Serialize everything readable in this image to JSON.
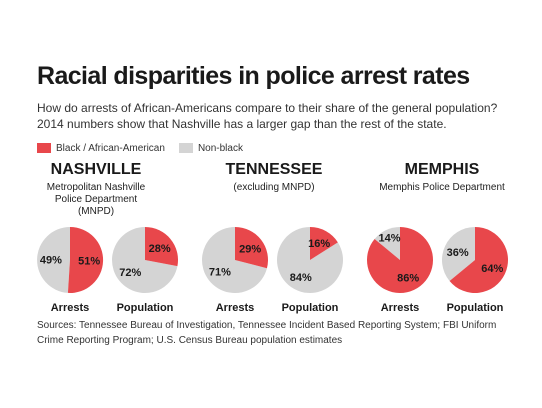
{
  "header": {
    "title": "Racial disparities in police arrest rates",
    "subtitle": "How do arrests of African-Americans compare to their share of the general population? 2014 numbers show that Nashville has a larger gap than the rest of the state."
  },
  "legend": {
    "black_label": "Black / African-American",
    "nonblack_label": "Non-black"
  },
  "colors": {
    "black": "#e8474b",
    "nonblack": "#d4d4d4"
  },
  "chart_data": {
    "type": "pie",
    "charts": [
      {
        "region": "NASHVILLE",
        "subtitle": "Metropolitan Nashville Police Department (MNPD)",
        "label": "Arrests",
        "black": 51,
        "nonblack": 49
      },
      {
        "region": "NASHVILLE",
        "subtitle": "Metropolitan Nashville Police Department (MNPD)",
        "label": "Population",
        "black": 28,
        "nonblack": 72
      },
      {
        "region": "TENNESSEE",
        "subtitle": "(excluding MNPD)",
        "label": "Arrests",
        "black": 29,
        "nonblack": 71
      },
      {
        "region": "TENNESSEE",
        "subtitle": "(excluding MNPD)",
        "label": "Population",
        "black": 16,
        "nonblack": 84
      },
      {
        "region": "MEMPHIS",
        "subtitle": "Memphis Police Department",
        "label": "Arrests",
        "black": 86,
        "nonblack": 14
      },
      {
        "region": "MEMPHIS",
        "subtitle": "Memphis Police Department",
        "label": "Population",
        "black": 64,
        "nonblack": 36
      }
    ]
  },
  "regions": [
    {
      "title": "NASHVILLE",
      "subtitle": "Metropolitan Nashville Police Department (MNPD)"
    },
    {
      "title": "TENNESSEE",
      "subtitle": "(excluding MNPD)"
    },
    {
      "title": "MEMPHIS",
      "subtitle": "Memphis Police Department"
    }
  ],
  "sources": "Sources: Tennessee Bureau of Investigation, Tennessee Incident Based Reporting System; FBI Uniform Crime Reporting Program; U.S. Census Bureau population estimates"
}
